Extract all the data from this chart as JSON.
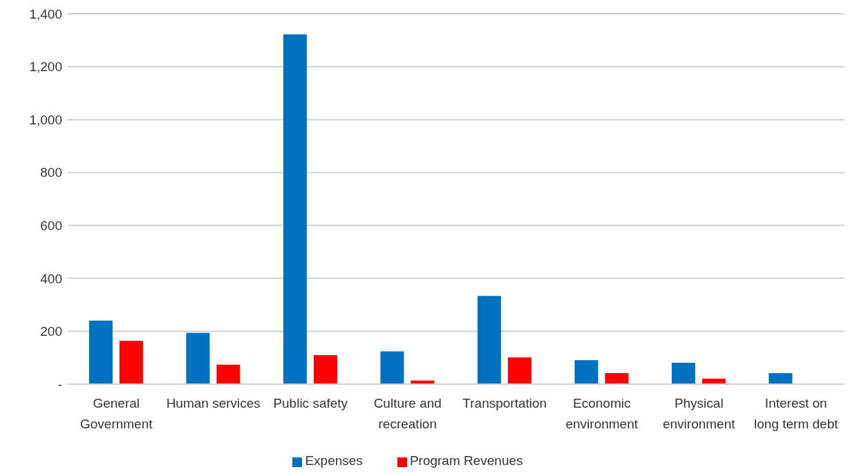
{
  "chart_data": {
    "type": "bar",
    "categories": [
      "General Government",
      "Human services",
      "Public safety",
      "Culture and recreation",
      "Transportation",
      "Economic environment",
      "Physical environment",
      "Interest on long term debt"
    ],
    "series": [
      {
        "name": "Expenses",
        "color": "#0070c0",
        "values": [
          240,
          194,
          1322,
          124,
          334,
          91,
          81,
          42
        ]
      },
      {
        "name": "Program Revenues",
        "color": "#ff0000",
        "values": [
          164,
          74,
          110,
          14,
          101,
          42,
          21,
          0
        ]
      }
    ],
    "ylim": [
      0,
      1400
    ],
    "yticks": [
      {
        "value": 0,
        "label": "-"
      },
      200,
      400,
      600,
      800,
      {
        "value": 1000,
        "label": "1,000"
      },
      {
        "value": 1200,
        "label": "1,200"
      },
      {
        "value": 1400,
        "label": "1,400"
      }
    ],
    "grid": "y",
    "legend": "bottom"
  }
}
